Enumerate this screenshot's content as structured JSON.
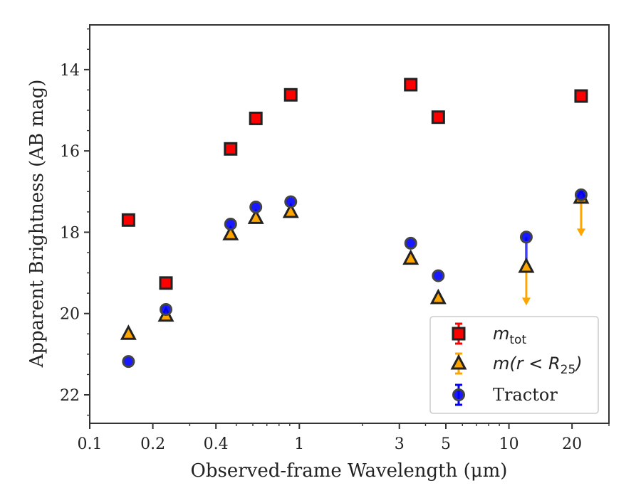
{
  "chart_data": {
    "type": "scatter",
    "xlabel": "Observed-frame Wavelength (μm)",
    "ylabel": "Apparent Brightness (AB mag)",
    "xscale": "log",
    "xlim": [
      0.1,
      30
    ],
    "ylim": [
      22.7,
      12.9
    ],
    "y_inverted": true,
    "x_ticks": [
      0.1,
      0.2,
      0.4,
      1,
      3,
      5,
      10,
      20
    ],
    "x_tick_labels": [
      "0.1",
      "0.2",
      "0.4",
      "1",
      "3",
      "5",
      "10",
      "20"
    ],
    "y_ticks": [
      14,
      16,
      18,
      20,
      22
    ],
    "y_tick_labels": [
      "14",
      "16",
      "18",
      "20",
      "22"
    ],
    "legend_position": "bottom-right",
    "grid": false,
    "series": [
      {
        "key": "mtot",
        "legend_main": "m",
        "legend_sub": "tot",
        "marker": "square",
        "color": "#ff0000",
        "edge_color": "#222222",
        "points": [
          {
            "x": 0.153,
            "y": 17.7
          },
          {
            "x": 0.231,
            "y": 19.25
          },
          {
            "x": 0.47,
            "y": 15.95
          },
          {
            "x": 0.62,
            "y": 15.2
          },
          {
            "x": 0.91,
            "y": 14.62
          },
          {
            "x": 3.4,
            "y": 14.37
          },
          {
            "x": 4.6,
            "y": 15.17
          },
          {
            "x": 22.1,
            "y": 14.65
          }
        ]
      },
      {
        "key": "mr25",
        "legend_main": "m(r < R",
        "legend_sub": "25",
        "legend_tail": ")",
        "marker": "triangle",
        "color": "#ffa500",
        "edge_color": "#222222",
        "points": [
          {
            "x": 0.153,
            "y": 20.5
          },
          {
            "x": 0.231,
            "y": 20.05
          },
          {
            "x": 0.47,
            "y": 18.05
          },
          {
            "x": 0.62,
            "y": 17.65
          },
          {
            "x": 0.91,
            "y": 17.5
          },
          {
            "x": 3.4,
            "y": 18.65
          },
          {
            "x": 4.6,
            "y": 19.62
          },
          {
            "x": 12.1,
            "y": 18.85,
            "upper_limit": true,
            "limit_to": 19.75
          },
          {
            "x": 22.1,
            "y": 17.15,
            "upper_limit": true,
            "limit_to": 18.05
          }
        ]
      },
      {
        "key": "tractor",
        "legend_main": "Tractor",
        "marker": "circle",
        "color": "#0000ff",
        "edge_color": "#444444",
        "points": [
          {
            "x": 0.153,
            "y": 21.18
          },
          {
            "x": 0.231,
            "y": 19.9
          },
          {
            "x": 0.47,
            "y": 17.8
          },
          {
            "x": 0.62,
            "y": 17.38
          },
          {
            "x": 0.91,
            "y": 17.25
          },
          {
            "x": 3.4,
            "y": 18.27
          },
          {
            "x": 4.6,
            "y": 19.07
          },
          {
            "x": 12.1,
            "y": 18.12,
            "err_to": 18.8
          },
          {
            "x": 22.1,
            "y": 17.08
          }
        ]
      }
    ]
  }
}
